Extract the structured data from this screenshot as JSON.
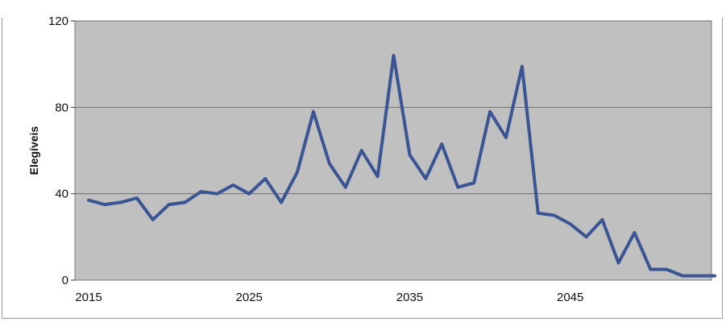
{
  "chart_data": {
    "type": "line",
    "title": "",
    "xlabel": "",
    "ylabel": "Elegíveis",
    "xlim": [
      2015,
      2054
    ],
    "ylim": [
      0,
      120
    ],
    "x_ticks": [
      2015,
      2025,
      2035,
      2045
    ],
    "y_ticks": [
      0,
      40,
      80,
      120
    ],
    "grid": "horizontal",
    "legend": "none",
    "colors": {
      "plot_background": "#c0c0c0",
      "line": "#3a5494",
      "gridline": "#6e6e6e"
    },
    "series": [
      {
        "x": [
          2015,
          2016,
          2017,
          2018,
          2019,
          2020,
          2021,
          2022,
          2023,
          2024,
          2025,
          2026,
          2027,
          2028,
          2029,
          2030,
          2031,
          2032,
          2033,
          2034,
          2035,
          2036,
          2037,
          2038,
          2039,
          2040,
          2041,
          2042,
          2043,
          2044,
          2045,
          2046,
          2047,
          2048,
          2049,
          2050,
          2051,
          2052,
          2053,
          2054
        ],
        "values": [
          37,
          35,
          36,
          38,
          28,
          35,
          36,
          41,
          40,
          44,
          40,
          47,
          36,
          50,
          78,
          54,
          43,
          60,
          48,
          104,
          58,
          47,
          63,
          43,
          45,
          78,
          66,
          99,
          31,
          30,
          26,
          20,
          28,
          8,
          22,
          5,
          5,
          2,
          2,
          2
        ]
      }
    ]
  }
}
